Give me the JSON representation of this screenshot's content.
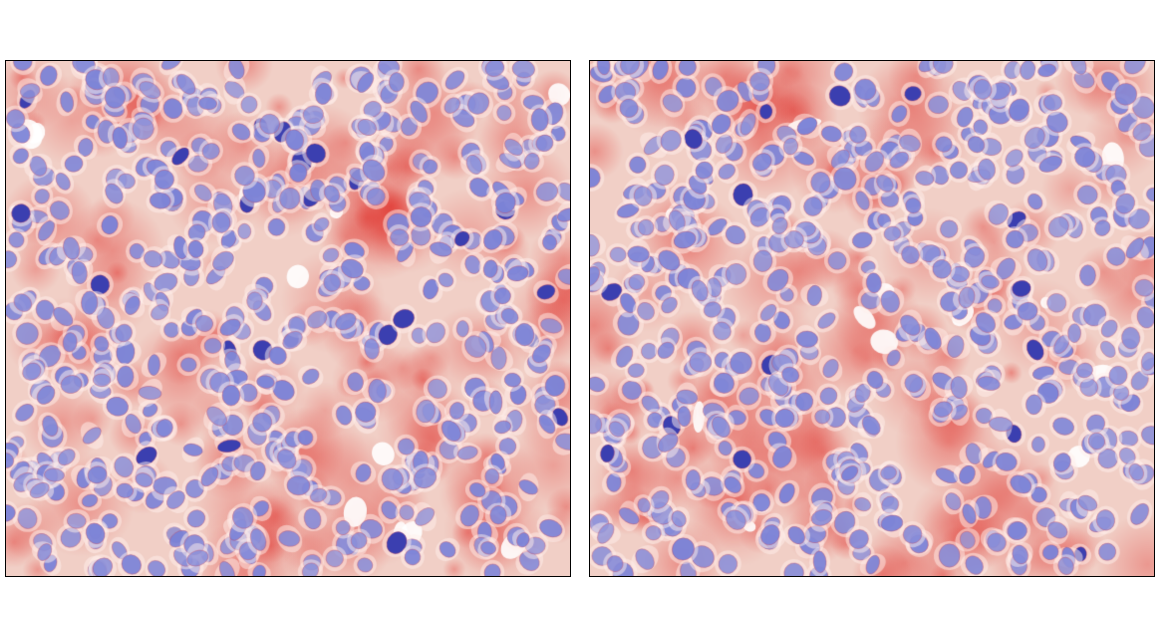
{
  "figure": {
    "panels": [
      {
        "id": "left",
        "seed": 17,
        "stain_intensity": 0.55
      },
      {
        "id": "right",
        "seed": 91,
        "stain_intensity": 0.6
      }
    ],
    "colors": {
      "background": "#f3dcd6",
      "nucleus": "#7d83d6",
      "nucleus_dark": "#3b3fb0",
      "stain_red": "#e0302a",
      "cytoplasm": "#f1cfc6",
      "border": "#000000"
    }
  }
}
